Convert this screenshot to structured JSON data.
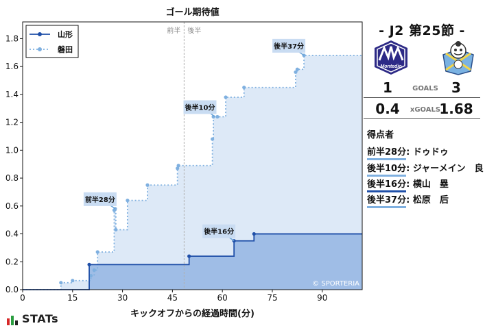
{
  "chart_data": {
    "type": "line",
    "title": "ゴール期待値",
    "xlabel": "キックオフからの経過時間(分)",
    "ylabel": "",
    "xlim": [
      0,
      102
    ],
    "ylim": [
      0,
      1.92
    ],
    "xticks": [
      0,
      15,
      30,
      45,
      60,
      75,
      90
    ],
    "yticks": [
      0.0,
      0.2,
      0.4,
      0.6,
      0.8,
      1.0,
      1.2,
      1.4,
      1.6,
      1.8
    ],
    "step": true,
    "grid": false,
    "legend": "top-left",
    "half_time_x": 48.5,
    "half_labels": [
      "前半",
      "後半"
    ],
    "series": [
      {
        "name": "山形",
        "color": "#1f4fa8",
        "fill": "#9fbde6",
        "points": [
          [
            0,
            0
          ],
          [
            20,
            0.18
          ],
          [
            50,
            0.24
          ],
          [
            63.5,
            0.35
          ],
          [
            69.5,
            0.4
          ],
          [
            102,
            0.4
          ]
        ]
      },
      {
        "name": "磐田",
        "color": "#7fb0e0",
        "fill": "#dde9f7",
        "points": [
          [
            0,
            0
          ],
          [
            11.5,
            0.05
          ],
          [
            15,
            0.065
          ],
          [
            20.5,
            0.1
          ],
          [
            21.5,
            0.14
          ],
          [
            22.5,
            0.27
          ],
          [
            27.5,
            0.57
          ],
          [
            27.8,
            0.58
          ],
          [
            28,
            0.43
          ],
          [
            31.5,
            0.64
          ],
          [
            37.5,
            0.75
          ],
          [
            46.5,
            0.87
          ],
          [
            46.8,
            0.89
          ],
          [
            57,
            1.08
          ],
          [
            57.3,
            1.24
          ],
          [
            58.5,
            1.24
          ],
          [
            61,
            1.38
          ],
          [
            66.5,
            1.45
          ],
          [
            82,
            1.56
          ],
          [
            82.5,
            1.58
          ],
          [
            84.5,
            1.68
          ],
          [
            102,
            1.68
          ]
        ]
      }
    ],
    "annotations": [
      {
        "label": "前半28分",
        "x": 27.8,
        "y": 0.58
      },
      {
        "label": "後半10分",
        "x": 57.8,
        "y": 1.24
      },
      {
        "label": "後半16分",
        "x": 63.5,
        "y": 0.35
      },
      {
        "label": "後半37分",
        "x": 84.5,
        "y": 1.68
      }
    ],
    "watermark": "© SPORTERIA"
  },
  "match": {
    "title": "- J2 第25節 -",
    "home_goals": "1",
    "away_goals": "3",
    "goals_label": "GOALS",
    "home_xg": "0.4",
    "away_xg": "1.68",
    "xg_label": "xGOALS",
    "home_crest_text": "Montedio",
    "scorers_title": "得点者",
    "scorers": [
      {
        "time": "前半28分",
        "player": ": ドゥドゥ",
        "team": "away"
      },
      {
        "time": "後半10分",
        "player": ": ジャーメイン　良",
        "team": "away"
      },
      {
        "time": "後半16分",
        "player": ": 横山　塁",
        "team": "home"
      },
      {
        "time": "後半37分",
        "player": ": 松原　后",
        "team": "away"
      }
    ]
  },
  "brand": {
    "name": "STATs"
  },
  "colors": {
    "home": "#1f4fa8",
    "away": "#7fb0e0",
    "label_bg": "#c9dcf2"
  }
}
